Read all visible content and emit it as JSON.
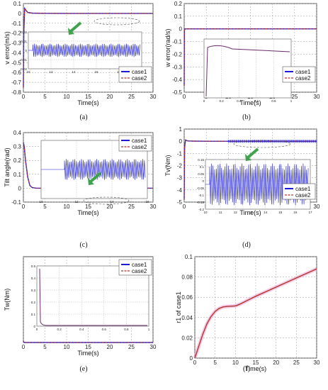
{
  "chart_data": [
    {
      "id": "a",
      "type": "line",
      "caption": "(a)",
      "xlabel": "Time(s)",
      "ylabel": "v error(m/s)",
      "xlim": [
        0,
        30
      ],
      "ylim": [
        -0.8,
        0.1
      ],
      "xticks": [
        "0",
        "5",
        "10",
        "15",
        "20",
        "25",
        "30"
      ],
      "yticks": [
        "0.1",
        "0",
        "-0.1",
        "-0.2",
        "-0.3",
        "-0.4",
        "-0.5",
        "-0.6",
        "-0.7",
        "-0.8"
      ],
      "legend": [
        "case1",
        "case2"
      ],
      "inset": {
        "xticks": [
          "10",
          "12",
          "14",
          "16",
          "18",
          "20"
        ],
        "yticks": [
          "0.02",
          "0.01",
          "0",
          "-0.01",
          "-0.02"
        ]
      },
      "series": [
        {
          "name": "case1",
          "x": [
            0,
            0.1,
            0.3,
            0.6,
            1,
            2,
            5,
            10,
            20,
            30
          ],
          "y": [
            -0.75,
            -0.2,
            0.05,
            0.03,
            0.01,
            0.003,
            0.001,
            0,
            0,
            0
          ]
        },
        {
          "name": "case2",
          "x": [
            0,
            0.1,
            0.3,
            0.6,
            1,
            2,
            5,
            10,
            20,
            30
          ],
          "y": [
            -0.75,
            -0.2,
            0.05,
            0.03,
            0.01,
            0.003,
            0.001,
            0,
            0,
            0
          ]
        }
      ]
    },
    {
      "id": "b",
      "type": "line",
      "caption": "(b)",
      "xlabel": "Time(s)",
      "ylabel": "w error(rad/s)",
      "xlim": [
        0,
        30
      ],
      "ylim": [
        -0.5,
        0.2
      ],
      "xticks": [
        "0",
        "5",
        "10",
        "15",
        "20",
        "25",
        "30"
      ],
      "yticks": [
        "0.2",
        "0.1",
        "0",
        "-0.1",
        "-0.2",
        "-0.3",
        "-0.4",
        "-0.5"
      ],
      "legend": [
        "case1",
        "case2"
      ],
      "inset": {
        "xticks": [
          "0",
          "0.2",
          "0.4",
          "0.6",
          "0.8",
          "1"
        ],
        "yticks": []
      },
      "series": [
        {
          "name": "case1",
          "x": [
            0,
            0.05,
            0.2,
            0.5,
            1,
            30
          ],
          "y": [
            -0.45,
            -0.01,
            0,
            0,
            0,
            0
          ]
        },
        {
          "name": "case2",
          "x": [
            0,
            0.05,
            0.2,
            0.5,
            1,
            30
          ],
          "y": [
            -0.45,
            -0.01,
            0,
            0,
            0,
            0
          ]
        }
      ]
    },
    {
      "id": "c",
      "type": "line",
      "caption": "(c)",
      "xlabel": "Time(s)",
      "ylabel": "Tilt angle(rad)",
      "xlim": [
        0,
        30
      ],
      "ylim": [
        -0.1,
        0.4
      ],
      "xticks": [
        "0",
        "5",
        "10",
        "15",
        "20",
        "25",
        "30"
      ],
      "yticks": [
        "0.4",
        "0.3",
        "0.2",
        "0.1",
        "0",
        "-0.1"
      ],
      "legend": [
        "case1",
        "case2"
      ],
      "inset": {
        "xticks": [
          "10",
          "12",
          "14",
          "16"
        ],
        "yticks": []
      },
      "series": [
        {
          "name": "case1",
          "x": [
            0,
            0.2,
            0.5,
            1,
            1.5,
            2,
            3,
            30
          ],
          "y": [
            0.33,
            0.3,
            0.2,
            0.08,
            0.02,
            0.005,
            0,
            0
          ]
        },
        {
          "name": "case2",
          "x": [
            0,
            0.2,
            0.5,
            1,
            1.5,
            2,
            3,
            30
          ],
          "y": [
            0.33,
            0.3,
            0.2,
            0.08,
            0.02,
            0.005,
            0,
            0
          ]
        }
      ]
    },
    {
      "id": "d",
      "type": "line",
      "caption": "(d)",
      "xlabel": "Time(s)",
      "ylabel": "Tv(Nm)",
      "xlim": [
        0,
        30
      ],
      "ylim": [
        -5,
        1
      ],
      "xticks": [
        "0",
        "5",
        "10",
        "15",
        "20",
        "25",
        "30"
      ],
      "yticks": [
        "1",
        "0",
        "-1",
        "-2",
        "-3",
        "-4",
        "-5"
      ],
      "legend": [
        "case1",
        "case2"
      ],
      "inset": {
        "xticks": [
          "10",
          "11",
          "12",
          "13",
          "14",
          "15",
          "16",
          "17"
        ],
        "yticks": [
          "0.15",
          "0.1",
          "0.05",
          "0",
          "-0.05",
          "-0.1",
          "-0.15",
          "-0.2"
        ]
      },
      "series": [
        {
          "name": "case1",
          "x": [
            0,
            0.1,
            0.3,
            0.6,
            1,
            2,
            5,
            10,
            30
          ],
          "y": [
            -4.8,
            -0.5,
            0.1,
            0.05,
            0.02,
            0.01,
            0,
            0,
            0
          ]
        },
        {
          "name": "case2",
          "x": [
            0,
            0.1,
            0.3,
            0.6,
            1,
            2,
            5,
            10,
            30
          ],
          "y": [
            -4.8,
            -0.5,
            0.1,
            0.05,
            0.02,
            0.01,
            0,
            0,
            0
          ]
        }
      ]
    },
    {
      "id": "e",
      "type": "line",
      "caption": "(e)",
      "xlabel": "Time(s)",
      "ylabel": "Tw(Nm)",
      "xlim": [
        0,
        30
      ],
      "ylim": [
        0,
        1
      ],
      "xticks": [
        "0",
        "5",
        "10",
        "15",
        "20",
        "25",
        "30"
      ],
      "yticks": [],
      "legend": [
        "case1",
        "case2"
      ],
      "inset": {
        "xticks": [
          "0",
          "0.2",
          "0.4",
          "0.6",
          "0.8",
          "1"
        ],
        "yticks": [
          "0.5",
          "0.4",
          "0.3",
          "0.2",
          "0.1",
          "0"
        ]
      },
      "series": [
        {
          "name": "case1",
          "x": [
            0,
            0.05,
            0.3,
            30
          ],
          "y": [
            0.02,
            0.005,
            0,
            0
          ]
        },
        {
          "name": "case2",
          "x": [
            0,
            0.05,
            0.3,
            30
          ],
          "y": [
            0.02,
            0.005,
            0,
            0
          ]
        }
      ]
    },
    {
      "id": "f",
      "type": "line",
      "caption": "(f)",
      "xlabel": "Time(s)",
      "ylabel": "r1 of case1",
      "xlim": [
        0,
        30
      ],
      "ylim": [
        0,
        0.1
      ],
      "xticks": [
        "0",
        "5",
        "10",
        "15",
        "20",
        "25",
        "30"
      ],
      "yticks": [
        "0.1",
        "0.08",
        "0.06",
        "0.04",
        "0.02",
        "0"
      ],
      "legend": [],
      "series": [
        {
          "name": "case1",
          "x": [
            0,
            1,
            2,
            3,
            4,
            5,
            6,
            7,
            8,
            9,
            10,
            11,
            12,
            15,
            20,
            25,
            30
          ],
          "y": [
            0,
            0.012,
            0.024,
            0.034,
            0.041,
            0.046,
            0.049,
            0.0505,
            0.051,
            0.0512,
            0.0515,
            0.053,
            0.055,
            0.061,
            0.07,
            0.079,
            0.088
          ]
        }
      ]
    }
  ],
  "colors": {
    "case1": "#1a1adb",
    "case2": "#b5332a",
    "grid": "#9a9a9a",
    "highlight": "#e8a6d8",
    "arrow": "#3fa34d"
  }
}
